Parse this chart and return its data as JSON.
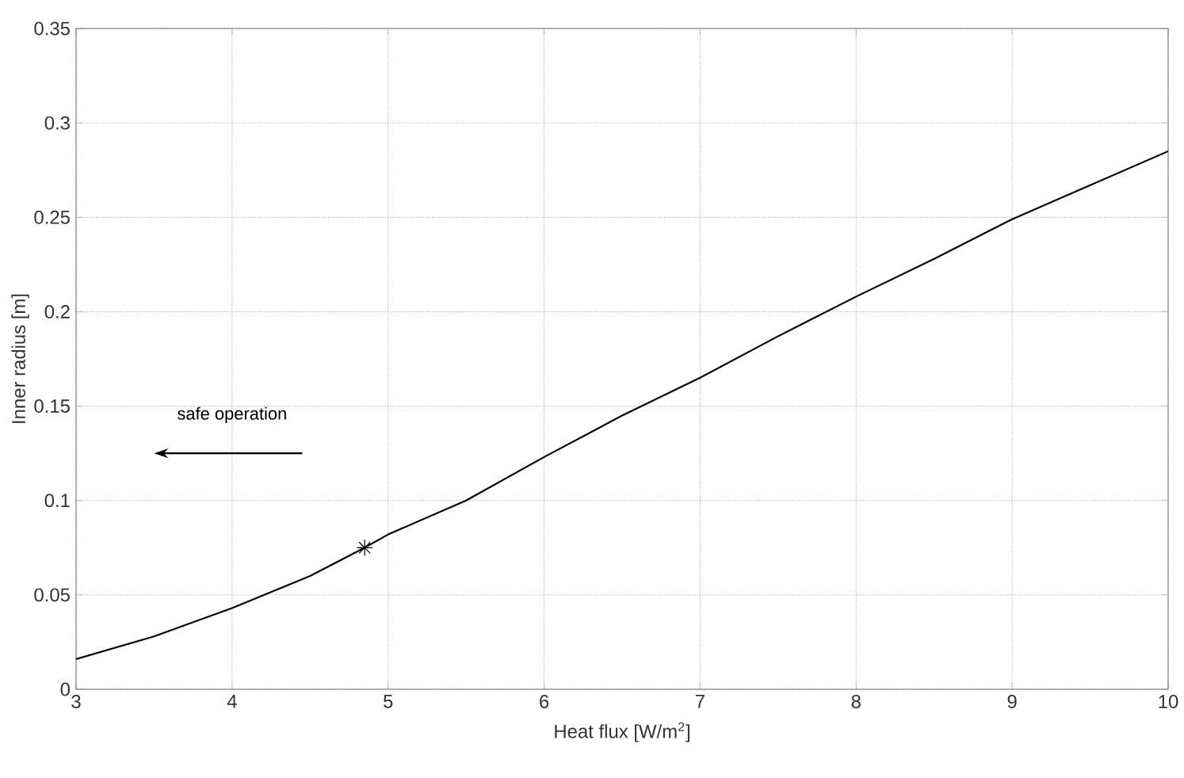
{
  "chart_data": {
    "type": "line",
    "xlabel": "Heat flux [W/m$^{2}$]",
    "ylabel": "Inner radius [m]",
    "annotations": [
      "safe operation"
    ],
    "series": [
      {
        "color": "#000000",
        "line_style": "solid",
        "marker": "none",
        "x": [
          3,
          3.5,
          4,
          4.5,
          4.85,
          5,
          5.5,
          6,
          6.5,
          7,
          7.5,
          8,
          8.5,
          9,
          9.5,
          10
        ],
        "values": [
          0.016,
          0.028,
          0.043,
          0.06,
          0.075,
          0.082,
          0.1,
          0.123,
          0.145,
          0.165,
          0.187,
          0.208,
          0.228,
          0.249,
          0.267,
          0.285
        ]
      },
      {
        "type": "scatter",
        "color": "#000000",
        "marker": "cross",
        "x": [
          4.85
        ],
        "values": [
          0.075
        ]
      }
    ],
    "xlim": [
      3,
      10
    ],
    "ylim": [
      0,
      0.35
    ],
    "xticks": [
      3,
      4,
      5,
      6,
      7,
      8,
      9,
      10
    ],
    "yticks": [
      0,
      0.05,
      0.1,
      0.15,
      0.2,
      0.25,
      0.3,
      0.35
    ],
    "grid": true
  }
}
